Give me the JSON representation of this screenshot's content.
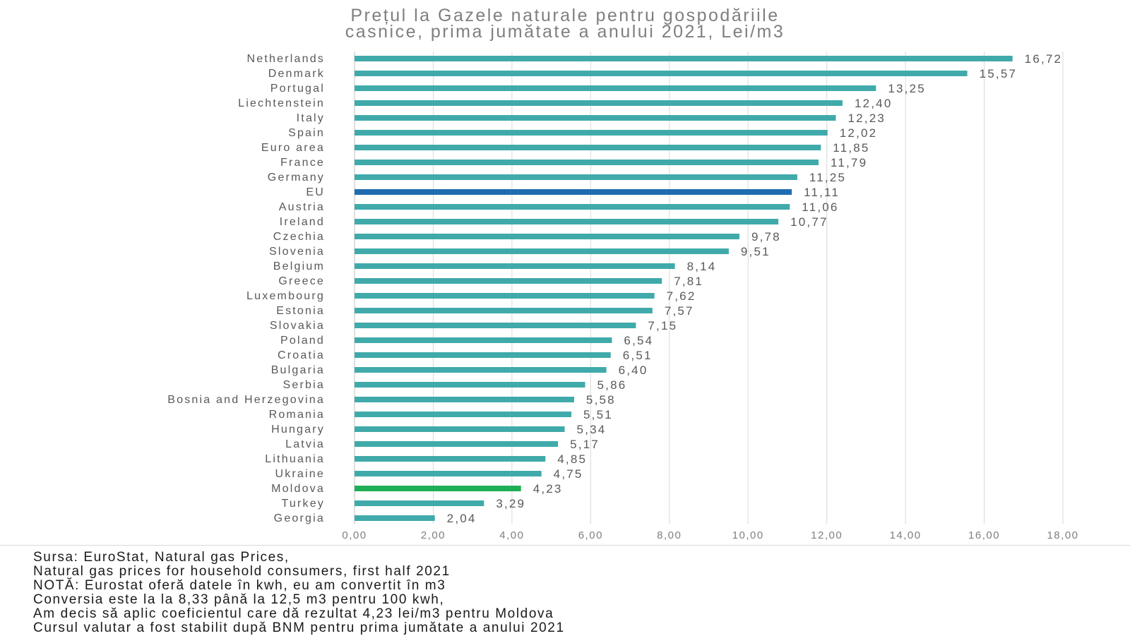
{
  "chart_data": {
    "type": "bar",
    "orientation": "horizontal",
    "title_lines": [
      "Prețul la Gazele naturale pentru gospodăriile",
      "casnice, prima jumătate a anului 2021, Lei/m3"
    ],
    "categories": [
      "Netherlands",
      "Denmark",
      "Portugal",
      "Liechtenstein",
      "Italy",
      "Spain",
      "Euro area",
      "France",
      "Germany",
      "EU",
      "Austria",
      "Ireland",
      "Czechia",
      "Slovenia",
      "Belgium",
      "Greece",
      "Luxembourg",
      "Estonia",
      "Slovakia",
      "Poland",
      "Croatia",
      "Bulgaria",
      "Serbia",
      "Bosnia and Herzegovina",
      "Romania",
      "Hungary",
      "Latvia",
      "Lithuania",
      "Ukraine",
      "Moldova",
      "Turkey",
      "Georgia"
    ],
    "values": [
      16.72,
      15.57,
      13.25,
      12.4,
      12.23,
      12.02,
      11.85,
      11.79,
      11.25,
      11.11,
      11.06,
      10.77,
      9.78,
      9.51,
      8.14,
      7.81,
      7.62,
      7.57,
      7.15,
      6.54,
      6.51,
      6.4,
      5.86,
      5.58,
      5.51,
      5.34,
      5.17,
      4.85,
      4.75,
      4.23,
      3.29,
      2.04
    ],
    "value_labels": [
      "16,72",
      "15,57",
      "13,25",
      "12,40",
      "12,23",
      "12,02",
      "11,85",
      "11,79",
      "11,25",
      "11,11",
      "11,06",
      "10,77",
      "9,78",
      "9,51",
      "8,14",
      "7,81",
      "7,62",
      "7,57",
      "7,15",
      "6,54",
      "6,51",
      "6,40",
      "5,86",
      "5,58",
      "5,51",
      "5,34",
      "5,17",
      "4,85",
      "4,75",
      "4,23",
      "3,29",
      "2,04"
    ],
    "highlights": {
      "EU": "#1f6cb0",
      "Moldova": "#1fae55"
    },
    "bar_color": "#40aaaa",
    "axis_color": "#d9d9d9",
    "x_ticks": [
      "0,00",
      "2,00",
      "4,00",
      "6,00",
      "8,00",
      "10,00",
      "12,00",
      "14,00",
      "16,00",
      "18,00"
    ],
    "xlim": [
      0,
      18
    ],
    "grid": true,
    "xlabel": "",
    "ylabel": ""
  },
  "footer": {
    "lines": [
      "Sursa: EuroStat, Natural gas Prices,",
      "Natural gas prices for household consumers, first half 2021",
      "NOTĂ: Eurostat oferă datele în kwh, eu am convertit în m3",
      "Conversia este la la 8,33 până la 12,5  m3 pentru 100  kwh,",
      "Am decis să aplic coeficientul care dă rezultat 4,23  lei/m3 pentru Moldova",
      "Cursul valutar a fost stabilit după BNM pentru prima jumătate a anului 2021"
    ]
  }
}
